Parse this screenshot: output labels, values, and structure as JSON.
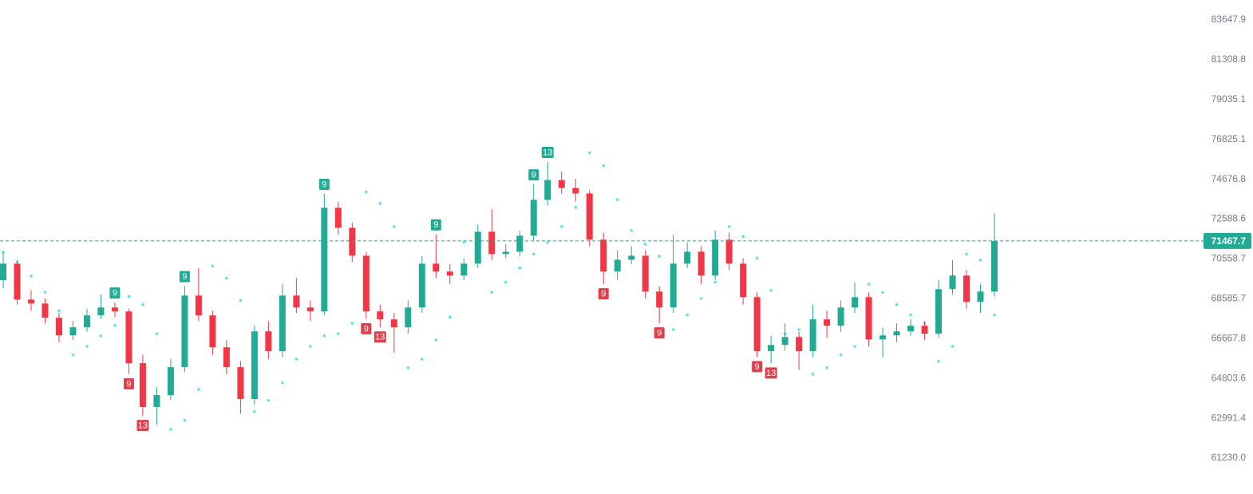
{
  "chart_data": {
    "type": "candlestick",
    "log_scale": true,
    "ylim": [
      60334,
      84842
    ],
    "yticks": [
      83647.9,
      81308.8,
      79035.1,
      76825.1,
      74676.8,
      72588.6,
      70558.7,
      68585.7,
      66667.8,
      64803.6,
      62991.4,
      {
        "value": 61230,
        "label": "61230.0"
      }
    ],
    "up_color": "#22ab94",
    "down_color": "#f23645",
    "sar_color": "#5ce3ea",
    "open": [
      69500,
      70322,
      68547,
      68355,
      67664,
      66821,
      67206,
      67782,
      68163,
      67971,
      65512,
      63498,
      64043,
      65326,
      68744,
      67782,
      66258,
      65326,
      63860,
      67014,
      66071,
      68744,
      68163,
      67971,
      73174,
      72142,
      70721,
      67971,
      67587,
      67206,
      68163,
      70322,
      69927,
      69729,
      70322,
      71939,
      70802,
      70924,
      71736,
      73592,
      74635,
      74217,
      73925,
      71533,
      69927,
      70519,
      70721,
      68941,
      68163,
      70322,
      70924,
      69729,
      71533,
      70322,
      68665,
      66071,
      66369,
      66745,
      66071,
      67587,
      67282,
      68163,
      68665,
      66630,
      66821,
      67014,
      67282,
      66900,
      69060,
      69729,
      68432,
      68941
    ],
    "high": [
      70900,
      70500,
      69000,
      68600,
      67900,
      67500,
      68100,
      68800,
      68400,
      68100,
      65900,
      64400,
      65700,
      69200,
      70100,
      68000,
      66600,
      65600,
      67300,
      67500,
      69300,
      69600,
      68500,
      73900,
      73500,
      72400,
      70900,
      68300,
      67900,
      68500,
      70700,
      71800,
      70300,
      70600,
      72300,
      73100,
      71300,
      72000,
      74400,
      75600,
      75100,
      74700,
      74100,
      71900,
      71000,
      71200,
      71000,
      69200,
      71800,
      71400,
      71200,
      72000,
      71900,
      70600,
      68900,
      66800,
      67400,
      67000,
      68300,
      68000,
      68500,
      69400,
      68900,
      67200,
      67400,
      67600,
      67500,
      69500,
      70500,
      70000,
      69300,
      72900
    ],
    "low": [
      69100,
      68300,
      68000,
      67400,
      66500,
      66600,
      67000,
      67600,
      67700,
      65000,
      63100,
      62700,
      63800,
      65100,
      67500,
      65900,
      65000,
      63200,
      63600,
      65700,
      65800,
      67900,
      67500,
      67800,
      71800,
      70400,
      67600,
      67200,
      66000,
      66900,
      67900,
      69600,
      69300,
      69500,
      70100,
      70500,
      70600,
      70700,
      71500,
      73300,
      73900,
      73500,
      71200,
      69300,
      69500,
      70300,
      68600,
      67400,
      67900,
      70100,
      69300,
      69500,
      70000,
      68300,
      65800,
      65500,
      66100,
      65200,
      65800,
      66700,
      67000,
      67900,
      66300,
      65800,
      66500,
      66800,
      66600,
      66700,
      68800,
      68100,
      67900,
      68700
    ],
    "close": [
      70322,
      68547,
      68355,
      67664,
      66821,
      67206,
      67782,
      68163,
      67971,
      65512,
      63498,
      64043,
      65326,
      68744,
      67782,
      66258,
      65326,
      63860,
      67014,
      66071,
      68744,
      68163,
      67971,
      73174,
      72142,
      70721,
      67971,
      67587,
      67206,
      68163,
      70322,
      69927,
      69729,
      70322,
      71939,
      70802,
      70924,
      71736,
      73592,
      74635,
      74217,
      73925,
      71533,
      69927,
      70519,
      70721,
      68941,
      68163,
      70322,
      70924,
      69729,
      71533,
      70322,
      68665,
      66071,
      66369,
      66745,
      66071,
      67587,
      67282,
      68163,
      68665,
      66630,
      66821,
      67014,
      67282,
      66900,
      69060,
      69729,
      68432,
      68941,
      71467.7
    ],
    "sar": [
      70900,
      70400,
      69700,
      68900,
      68000,
      65900,
      66300,
      66800,
      67300,
      68700,
      68300,
      66900,
      62500,
      62900,
      64300,
      70200,
      69600,
      68500,
      63300,
      63800,
      64600,
      65700,
      66300,
      66800,
      66900,
      67400,
      74000,
      73400,
      72200,
      65300,
      65700,
      66600,
      67700,
      71400,
      71000,
      68900,
      69400,
      70100,
      70800,
      71400,
      72200,
      73200,
      76100,
      75400,
      73600,
      72000,
      71300,
      70700,
      67100,
      67800,
      68600,
      69400,
      72200,
      71700,
      70600,
      69000,
      66900,
      67100,
      65000,
      65300,
      65900,
      66300,
      69300,
      68900,
      68300,
      67800,
      67400,
      65600,
      66300,
      70800,
      70500,
      67800
    ],
    "markers": [
      {
        "text": "9",
        "candle": 8,
        "side": "above",
        "color": "#22ab94"
      },
      {
        "text": "9",
        "candle": 13,
        "side": "above",
        "color": "#22ab94"
      },
      {
        "text": "9",
        "candle": 23,
        "side": "above",
        "color": "#22ab94"
      },
      {
        "text": "9",
        "candle": 31,
        "side": "above",
        "color": "#22ab94"
      },
      {
        "text": "9",
        "candle": 38,
        "side": "above",
        "color": "#22ab94"
      },
      {
        "text": "13",
        "candle": 39,
        "side": "above",
        "color": "#22ab94"
      },
      {
        "text": "9",
        "candle": 9,
        "side": "below",
        "color": "#e0404b"
      },
      {
        "text": "13",
        "candle": 10,
        "side": "below",
        "color": "#e0404b"
      },
      {
        "text": "9",
        "candle": 26,
        "side": "below",
        "color": "#e0404b"
      },
      {
        "text": "13",
        "candle": 27,
        "side": "below",
        "color": "#e0404b"
      },
      {
        "text": "9",
        "candle": 43,
        "side": "below",
        "color": "#e0404b"
      },
      {
        "text": "9",
        "candle": 47,
        "side": "below",
        "color": "#e0404b"
      },
      {
        "text": "9",
        "candle": 54,
        "side": "below",
        "color": "#e0404b"
      },
      {
        "text": "13",
        "candle": 55,
        "side": "below",
        "color": "#e0404b"
      }
    ]
  }
}
